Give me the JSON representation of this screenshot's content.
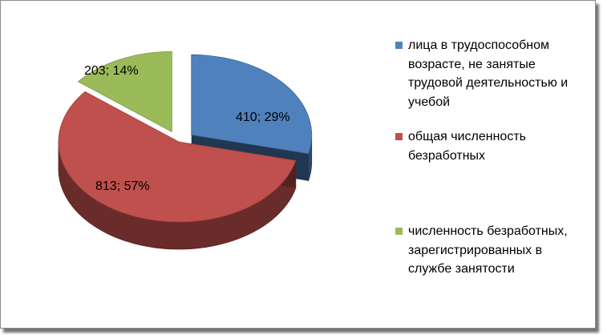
{
  "chart_data": {
    "type": "pie",
    "title": "",
    "slices": [
      {
        "label": "лица в трудоспособном возрасте, не занятые трудовой деятельностью и учебой",
        "value": 410,
        "percent": 29,
        "data_label": "410; 29%",
        "color": "#4F81BD"
      },
      {
        "label": "общая численность безработных",
        "value": 813,
        "percent": 57,
        "data_label": "813; 57%",
        "color": "#C0504D"
      },
      {
        "label": "численность безработных, зарегистрированных в службе занятости",
        "value": 203,
        "percent": 14,
        "data_label": "203; 14%",
        "color": "#9BBB59"
      }
    ],
    "legend_position": "right"
  }
}
